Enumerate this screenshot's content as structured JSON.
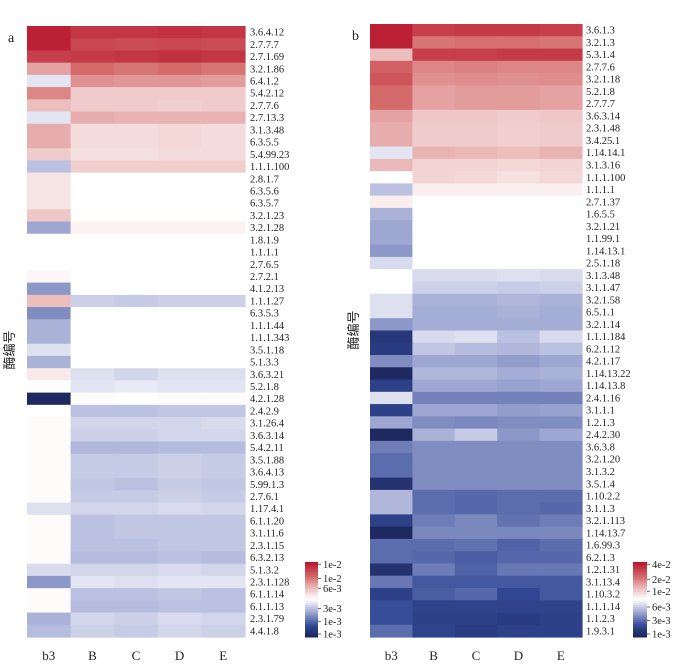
{
  "chart_data": [
    {
      "type": "heatmap",
      "panel_label": "a",
      "ylabel": "酶编号",
      "columns": [
        "b3",
        "B",
        "C",
        "D",
        "E"
      ],
      "value_encoding": "colour-scale position 0-1 (0 = darkest blue, 0.5 = white, 1 = darkest red)",
      "colorbar_ticks": [
        "1e-2",
        "1e-2",
        "6e-3",
        "3e-3",
        "1e-3",
        "1e-3"
      ],
      "rows": [
        "3.6.4.12",
        "2.7.7.7",
        "2.7.1.69",
        "3.2.1.86",
        "6.4.1.2",
        "5.4.2.12",
        "2.7.7.6",
        "2.7.13.3",
        "3.1.3.48",
        "6.3.5.5",
        "5.4.99.23",
        "1.1.1.100",
        "2.8.1.7",
        "6.3.5.6",
        "6.3.5.7",
        "3.2.1.23",
        "3.2.1.28",
        "1.8.1.9",
        "1.1.1.1",
        "2.7.6.5",
        "2.7.2.1",
        "4.1.2.13",
        "1.1.1.27",
        "6.3.5.3",
        "1.1.1.44",
        "1.1.1.343",
        "3.5.1.18",
        "5.1.3.3",
        "3.6.3.21",
        "5.2.1.8",
        "4.2.1.28",
        "2.4.2.9",
        "3.1.26.4",
        "3.6.3.14",
        "5.4.2.11",
        "3.5.1.88",
        "3.6.4.13",
        "5.99.1.3",
        "2.7.6.1",
        "1.17.4.1",
        "6.1.1.20",
        "3.1.11.6",
        "2.3.1.15",
        "6.3.2.13",
        "5.1.3.2",
        "2.3.1.128",
        "6.1.1.14",
        "6.1.1.13",
        "2.3.1.79",
        "4.4.1.8"
      ],
      "values": [
        [
          0.97,
          0.92,
          0.92,
          0.93,
          0.92
        ],
        [
          0.97,
          0.88,
          0.87,
          0.88,
          0.87
        ],
        [
          0.9,
          0.91,
          0.92,
          0.93,
          0.92
        ],
        [
          0.7,
          0.8,
          0.78,
          0.8,
          0.78
        ],
        [
          0.45,
          0.73,
          0.72,
          0.72,
          0.71
        ],
        [
          0.75,
          0.62,
          0.62,
          0.62,
          0.62
        ],
        [
          0.65,
          0.62,
          0.62,
          0.61,
          0.62
        ],
        [
          0.45,
          0.68,
          0.67,
          0.67,
          0.67
        ],
        [
          0.68,
          0.58,
          0.58,
          0.59,
          0.58
        ],
        [
          0.68,
          0.58,
          0.58,
          0.59,
          0.58
        ],
        [
          0.62,
          0.57,
          0.57,
          0.58,
          0.58
        ],
        [
          0.38,
          0.61,
          0.61,
          0.61,
          0.61
        ],
        [
          0.56,
          0.5,
          0.5,
          0.5,
          0.5
        ],
        [
          0.56,
          0.5,
          0.5,
          0.5,
          0.5
        ],
        [
          0.56,
          0.5,
          0.5,
          0.5,
          0.5
        ],
        [
          0.63,
          0.5,
          0.5,
          0.5,
          0.5
        ],
        [
          0.33,
          0.53,
          0.53,
          0.53,
          0.53
        ],
        [
          0.5,
          0.5,
          0.5,
          0.5,
          0.5
        ],
        [
          0.5,
          0.5,
          0.5,
          0.5,
          0.5
        ],
        [
          0.5,
          0.5,
          0.5,
          0.5,
          0.5
        ],
        [
          0.52,
          0.5,
          0.5,
          0.5,
          0.5
        ],
        [
          0.3,
          0.5,
          0.5,
          0.5,
          0.5
        ],
        [
          0.65,
          0.41,
          0.4,
          0.41,
          0.41
        ],
        [
          0.28,
          0.5,
          0.5,
          0.5,
          0.5
        ],
        [
          0.35,
          0.5,
          0.5,
          0.5,
          0.5
        ],
        [
          0.35,
          0.5,
          0.5,
          0.5,
          0.5
        ],
        [
          0.44,
          0.5,
          0.5,
          0.5,
          0.5
        ],
        [
          0.35,
          0.5,
          0.5,
          0.5,
          0.5
        ],
        [
          0.55,
          0.44,
          0.42,
          0.44,
          0.44
        ],
        [
          0.5,
          0.45,
          0.46,
          0.45,
          0.45
        ],
        [
          0.02,
          0.51,
          0.5,
          0.51,
          0.51
        ],
        [
          0.5,
          0.38,
          0.38,
          0.39,
          0.39
        ],
        [
          0.51,
          0.42,
          0.42,
          0.42,
          0.43
        ],
        [
          0.51,
          0.41,
          0.41,
          0.42,
          0.42
        ],
        [
          0.51,
          0.36,
          0.36,
          0.37,
          0.37
        ],
        [
          0.51,
          0.4,
          0.4,
          0.41,
          0.4
        ],
        [
          0.51,
          0.4,
          0.4,
          0.41,
          0.4
        ],
        [
          0.51,
          0.39,
          0.38,
          0.4,
          0.39
        ],
        [
          0.51,
          0.4,
          0.4,
          0.41,
          0.4
        ],
        [
          0.44,
          0.42,
          0.42,
          0.43,
          0.42
        ],
        [
          0.51,
          0.38,
          0.39,
          0.39,
          0.39
        ],
        [
          0.51,
          0.38,
          0.39,
          0.39,
          0.39
        ],
        [
          0.51,
          0.38,
          0.38,
          0.39,
          0.39
        ],
        [
          0.51,
          0.37,
          0.37,
          0.38,
          0.37
        ],
        [
          0.43,
          0.42,
          0.42,
          0.43,
          0.42
        ],
        [
          0.3,
          0.45,
          0.44,
          0.45,
          0.45
        ],
        [
          0.51,
          0.38,
          0.38,
          0.39,
          0.38
        ],
        [
          0.51,
          0.37,
          0.37,
          0.38,
          0.38
        ],
        [
          0.35,
          0.42,
          0.41,
          0.43,
          0.42
        ],
        [
          0.37,
          0.41,
          0.4,
          0.42,
          0.41
        ]
      ]
    },
    {
      "type": "heatmap",
      "panel_label": "b",
      "ylabel": "酶编号",
      "columns": [
        "b3",
        "B",
        "C",
        "D",
        "E"
      ],
      "value_encoding": "colour-scale position 0-1 (0 = darkest blue, 0.5 = white, 1 = darkest red)",
      "colorbar_ticks": [
        "4e-2",
        "2e-2",
        "1e-2",
        "6e-3",
        "3e-3",
        "1e-3"
      ],
      "rows": [
        "3.6.1.3",
        "3.2.1.3",
        "5.3.1.4",
        "2.7.7.6",
        "3.2.1.18",
        "5.2.1.8",
        "2.7.7.7",
        "3.6.3.14",
        "2.3.1.48",
        "3.4.25.1",
        "1.14.14.1",
        "3.1.3.16",
        "1.1.1.100",
        "1.1.1.1",
        "2.7.1.37",
        "1.6.5.5",
        "3.2.1.21",
        "1.1.99.1",
        "1.14.13.1",
        "2.5.1.18",
        "3.1.3.48",
        "3.1.1.47",
        "3.2.1.58",
        "6.5.1.1",
        "3.2.1.14",
        "1.1.1.184",
        "6.2.1.12",
        "4.2.1.17",
        "1.14.13.22",
        "1.14.13.8",
        "2.4.1.16",
        "3.1.1.1",
        "1.2.1.3",
        "2.4.2.30",
        "3.6.3.8",
        "3.2.1.20",
        "3.1.3.2",
        "3.5.1.4",
        "1.10.2.2",
        "3.1.1.3",
        "3.2.1.113",
        "1.14.13.7",
        "1.6.99.3",
        "6.2.1.3",
        "1.2.1.31",
        "3.1.13.4",
        "1.10.3.2",
        "1.1.1.14",
        "1.1.2.3",
        "1.9.3.1"
      ],
      "values": [
        [
          0.97,
          0.9,
          0.91,
          0.91,
          0.9
        ],
        [
          0.97,
          0.78,
          0.79,
          0.79,
          0.78
        ],
        [
          0.65,
          0.9,
          0.9,
          0.91,
          0.91
        ],
        [
          0.82,
          0.75,
          0.76,
          0.75,
          0.75
        ],
        [
          0.85,
          0.73,
          0.74,
          0.73,
          0.74
        ],
        [
          0.8,
          0.7,
          0.71,
          0.71,
          0.7
        ],
        [
          0.8,
          0.7,
          0.71,
          0.71,
          0.7
        ],
        [
          0.7,
          0.63,
          0.63,
          0.62,
          0.63
        ],
        [
          0.68,
          0.62,
          0.62,
          0.61,
          0.62
        ],
        [
          0.68,
          0.62,
          0.62,
          0.61,
          0.62
        ],
        [
          0.45,
          0.67,
          0.66,
          0.65,
          0.67
        ],
        [
          0.66,
          0.6,
          0.6,
          0.59,
          0.6
        ],
        [
          0.5,
          0.6,
          0.59,
          0.57,
          0.59
        ],
        [
          0.38,
          0.54,
          0.54,
          0.54,
          0.54
        ],
        [
          0.54,
          0.5,
          0.5,
          0.5,
          0.5
        ],
        [
          0.35,
          0.5,
          0.5,
          0.5,
          0.5
        ],
        [
          0.33,
          0.5,
          0.5,
          0.5,
          0.5
        ],
        [
          0.33,
          0.5,
          0.5,
          0.5,
          0.5
        ],
        [
          0.3,
          0.5,
          0.5,
          0.5,
          0.5
        ],
        [
          0.43,
          0.5,
          0.5,
          0.5,
          0.5
        ],
        [
          0.5,
          0.43,
          0.43,
          0.44,
          0.43
        ],
        [
          0.5,
          0.41,
          0.41,
          0.4,
          0.41
        ],
        [
          0.44,
          0.35,
          0.35,
          0.36,
          0.35
        ],
        [
          0.44,
          0.34,
          0.34,
          0.35,
          0.34
        ],
        [
          0.3,
          0.34,
          0.34,
          0.34,
          0.34
        ],
        [
          0.08,
          0.43,
          0.44,
          0.38,
          0.43
        ],
        [
          0.1,
          0.39,
          0.37,
          0.36,
          0.38
        ],
        [
          0.28,
          0.33,
          0.33,
          0.31,
          0.33
        ],
        [
          0.02,
          0.36,
          0.36,
          0.34,
          0.35
        ],
        [
          0.12,
          0.33,
          0.33,
          0.32,
          0.33
        ],
        [
          0.44,
          0.26,
          0.26,
          0.26,
          0.26
        ],
        [
          0.12,
          0.33,
          0.33,
          0.31,
          0.32
        ],
        [
          0.33,
          0.28,
          0.27,
          0.28,
          0.28
        ],
        [
          0.02,
          0.35,
          0.4,
          0.3,
          0.33
        ],
        [
          0.25,
          0.28,
          0.28,
          0.28,
          0.28
        ],
        [
          0.22,
          0.28,
          0.28,
          0.28,
          0.28
        ],
        [
          0.22,
          0.28,
          0.28,
          0.28,
          0.28
        ],
        [
          0.06,
          0.28,
          0.28,
          0.28,
          0.28
        ],
        [
          0.36,
          0.22,
          0.21,
          0.22,
          0.22
        ],
        [
          0.36,
          0.22,
          0.21,
          0.22,
          0.21
        ],
        [
          0.12,
          0.25,
          0.27,
          0.23,
          0.25
        ],
        [
          0.02,
          0.27,
          0.27,
          0.27,
          0.27
        ],
        [
          0.22,
          0.22,
          0.23,
          0.2,
          0.22
        ],
        [
          0.22,
          0.21,
          0.19,
          0.21,
          0.21
        ],
        [
          0.06,
          0.25,
          0.2,
          0.24,
          0.24
        ],
        [
          0.24,
          0.18,
          0.18,
          0.18,
          0.18
        ],
        [
          0.12,
          0.19,
          0.21,
          0.14,
          0.18
        ],
        [
          0.16,
          0.13,
          0.13,
          0.13,
          0.13
        ],
        [
          0.16,
          0.12,
          0.12,
          0.1,
          0.12
        ],
        [
          0.22,
          0.13,
          0.1,
          0.12,
          0.12
        ]
      ]
    }
  ]
}
